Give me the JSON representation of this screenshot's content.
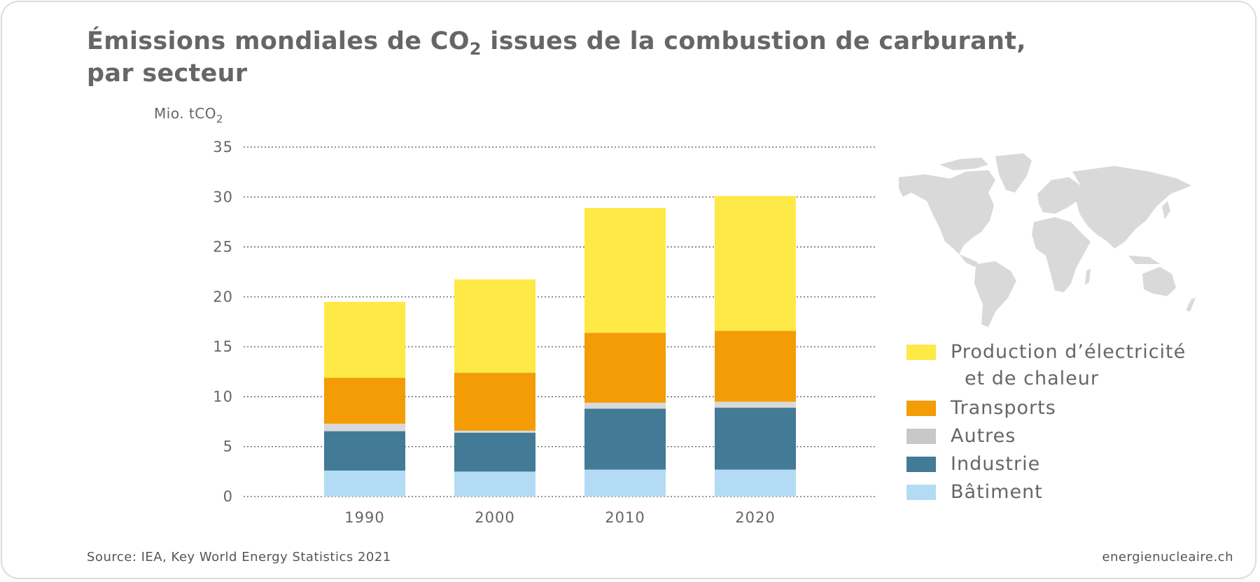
{
  "title": {
    "line1_pre": "Émissions mondiales de CO",
    "line1_sub": "2",
    "line1_post": " issues de la combustion de carburant,",
    "line2": "par secteur"
  },
  "unit": {
    "text": "Mio. tCO",
    "sub": "2"
  },
  "footer": {
    "source": "Source: IEA, Key World Energy Statistics 2021",
    "brand": "energienucleaire.ch"
  },
  "map": {
    "icon": "world-map-icon"
  },
  "chart_data": {
    "type": "bar",
    "stacked": true,
    "title": "Émissions mondiales de CO2 issues de la combustion de carburant, par secteur",
    "xlabel": "",
    "ylabel": "Mio. tCO2",
    "ylim": [
      0,
      35
    ],
    "yticks": [
      0,
      5,
      10,
      15,
      20,
      25,
      30,
      35
    ],
    "grid": true,
    "legend_position": "right",
    "categories": [
      "1990",
      "2000",
      "2010",
      "2020"
    ],
    "series": [
      {
        "name": "Bâtiment",
        "color": "#b3dcf4",
        "values": [
          2.6,
          2.5,
          2.7,
          2.7
        ]
      },
      {
        "name": "Industrie",
        "color": "#437a96",
        "values": [
          3.95,
          3.9,
          6.1,
          6.2
        ]
      },
      {
        "name": "Autres",
        "color": "#d9d9d9",
        "values": [
          0.75,
          0.2,
          0.6,
          0.6
        ]
      },
      {
        "name": "Transports",
        "color": "#f39c06",
        "values": [
          4.6,
          5.8,
          7.0,
          7.1
        ]
      },
      {
        "name": "Production d’électricité et de chaleur",
        "color": "#ffe946",
        "values": [
          7.6,
          9.35,
          12.5,
          13.5
        ]
      }
    ]
  },
  "legend": [
    {
      "line1": "Production d’électricité",
      "line2": "et de chaleur",
      "color": "#ffe946"
    },
    {
      "line1": "Transports",
      "color": "#f39c06"
    },
    {
      "line1": "Autres",
      "color": "#c8c8c8"
    },
    {
      "line1": "Industrie",
      "color": "#437a96"
    },
    {
      "line1": "Bâtiment",
      "color": "#b3dcf4"
    }
  ]
}
